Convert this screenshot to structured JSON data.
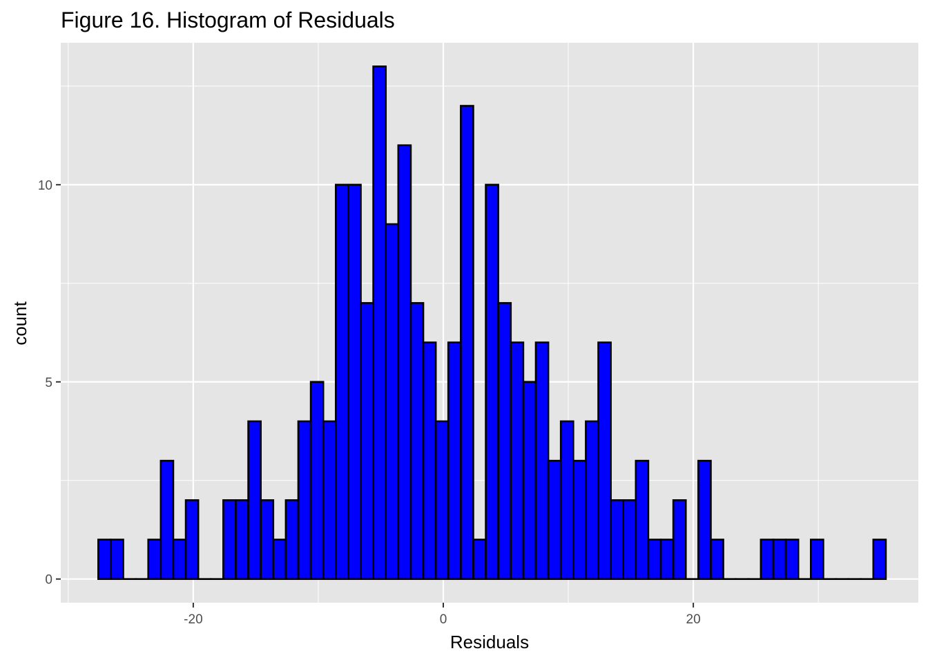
{
  "chart_data": {
    "type": "bar",
    "title": "Figure 16. Histogram of Residuals",
    "xlabel": "Residuals",
    "ylabel": "count",
    "xlim": [
      -30.6,
      38.0
    ],
    "ylim": [
      -0.6,
      13.6
    ],
    "x_ticks": [
      -20,
      0,
      20
    ],
    "x_tick_labels": [
      "-20",
      "0",
      "20"
    ],
    "x_minor_ticks": [
      -30,
      -10,
      10,
      30
    ],
    "y_ticks": [
      0,
      5,
      10
    ],
    "y_tick_labels": [
      "0",
      "5",
      "10"
    ],
    "y_minor_ticks": [
      2.5,
      7.5,
      12.5
    ],
    "bin_start": -27.6,
    "bin_width": 1.0,
    "values": [
      1,
      1,
      0,
      0,
      1,
      3,
      1,
      2,
      0,
      0,
      2,
      2,
      4,
      2,
      1,
      2,
      4,
      5,
      4,
      10,
      10,
      7,
      13,
      9,
      11,
      7,
      6,
      4,
      6,
      12,
      1,
      10,
      7,
      6,
      5,
      6,
      3,
      4,
      3,
      4,
      6,
      2,
      2,
      3,
      1,
      1,
      2,
      0,
      3,
      1,
      0,
      0,
      0,
      1,
      1,
      1,
      0,
      1,
      0,
      0,
      0,
      0,
      1
    ],
    "grid": true,
    "colors": {
      "bar_fill": "#0000ff",
      "bar_stroke": "#000000",
      "panel_background": "#e5e5e5",
      "gridline": "#ffffff"
    }
  }
}
